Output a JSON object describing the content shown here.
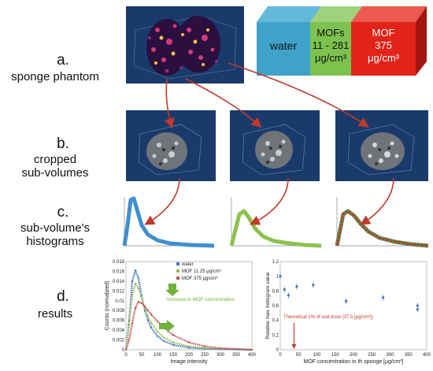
{
  "labels": {
    "a_step": "a.",
    "a_desc": "sponge phantom",
    "b_step": "b.",
    "b_desc1": "cropped",
    "b_desc2": "sub-volumes",
    "c_step": "c.",
    "c_desc1": "sub-volume's",
    "c_desc2": "histograms",
    "d_step": "d.",
    "d_desc": "results"
  },
  "legend_box": {
    "water": "water",
    "mofs_line1": "MOFs",
    "mofs_line2": "11 - 281",
    "mofs_line3": "μg/cm³",
    "mof_line1": "MOF",
    "mof_line2": "375",
    "mof_line3": "μg/cm³"
  },
  "colors": {
    "water": "#3fa3c9",
    "mofs": "#7dc24f",
    "mof375": "#e2231a",
    "panel": "#1a3a6b",
    "arrow": "#c0392b",
    "green_arrow": "#6fb33d"
  },
  "chart_data": [
    {
      "type": "line",
      "xlabel": "Image intensity",
      "ylabel": "Counts (normalized)",
      "xlim": [
        0,
        400
      ],
      "ylim": [
        0,
        0.018
      ],
      "xticks": [
        "0",
        "50",
        "100",
        "150",
        "200",
        "250",
        "300",
        "350",
        "400"
      ],
      "yticks": [
        "0",
        "0.002",
        "0.004",
        "0.006",
        "0.008",
        "0.01",
        "0.012",
        "0.014",
        "0.016",
        "0.018"
      ],
      "annotation": "Increase in MOF concentration",
      "legend_position": "top-right",
      "series": [
        {
          "name": "water",
          "color": "#4472c4",
          "x": [
            0,
            10,
            20,
            30,
            40,
            50,
            60,
            70,
            80,
            100,
            120,
            150,
            200,
            250,
            300,
            400
          ],
          "y": [
            0,
            0.006,
            0.014,
            0.0162,
            0.0145,
            0.011,
            0.008,
            0.006,
            0.0045,
            0.0028,
            0.0018,
            0.001,
            0.0004,
            0.0002,
            0.0001,
            0
          ]
        },
        {
          "name": "MOF 11.25 μg/cm³",
          "color": "#9bbb59",
          "x": [
            0,
            10,
            20,
            30,
            40,
            50,
            60,
            70,
            80,
            100,
            120,
            150,
            200,
            250,
            300,
            400
          ],
          "y": [
            0,
            0.005,
            0.011,
            0.0135,
            0.0125,
            0.0105,
            0.0085,
            0.0068,
            0.0055,
            0.0037,
            0.0025,
            0.0015,
            0.0007,
            0.0003,
            0.0002,
            0
          ]
        },
        {
          "name": "MOF 375 μg/cm³",
          "color": "#c0504d",
          "x": [
            0,
            10,
            20,
            30,
            40,
            50,
            60,
            70,
            80,
            100,
            120,
            150,
            200,
            250,
            300,
            400
          ],
          "y": [
            0,
            0.002,
            0.0055,
            0.0085,
            0.0098,
            0.0095,
            0.0088,
            0.008,
            0.0072,
            0.0058,
            0.0045,
            0.003,
            0.0015,
            0.0007,
            0.0003,
            0
          ]
        }
      ]
    },
    {
      "type": "scatter",
      "xlabel": "MOF concentration in th  sponge [μg/cm³]",
      "ylabel": "Relative max histogram value",
      "xlim": [
        0,
        400
      ],
      "ylim": [
        0,
        1.2
      ],
      "xticks": [
        "0",
        "50",
        "100",
        "150",
        "200",
        "250",
        "300",
        "350",
        "400"
      ],
      "yticks": [
        "0",
        "0.2",
        "0.4",
        "0.6",
        "0.8",
        "1",
        "1.2"
      ],
      "annotation": "Theoretical 1% of oral dose (37.5 [μg/cm³])",
      "series": [
        {
          "color": "#4472c4",
          "x": [
            0,
            11.25,
            22.5,
            45,
            90,
            180,
            281,
            375,
            375
          ],
          "y": [
            1.0,
            0.82,
            0.74,
            0.86,
            0.88,
            0.66,
            0.71,
            0.6,
            0.55
          ]
        }
      ]
    }
  ]
}
